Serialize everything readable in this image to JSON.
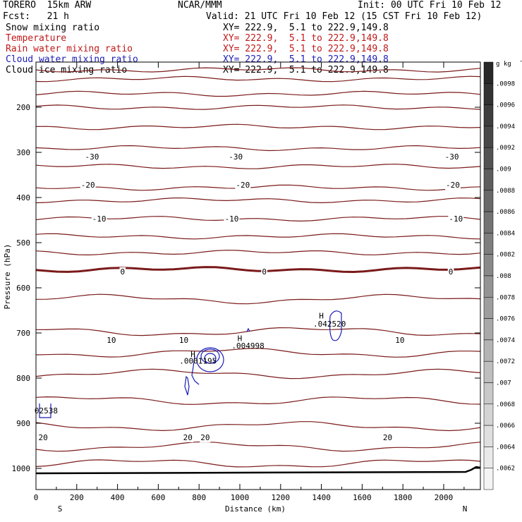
{
  "header": {
    "model": "TORERO  15km ARW",
    "org": "NCAR/MMM",
    "init": "Init: 00 UTC Fri 10 Feb 12",
    "fcst": "Fcst:   21 h",
    "valid": "Valid: 21 UTC Fri 10 Feb 12 (15 CST Fri 10 Feb 12)",
    "fields": [
      {
        "name": "Snow mixing ratio",
        "xy": "XY= 222.9,  5.1 to 222.9,149.8",
        "color": "#000000"
      },
      {
        "name": "Temperature",
        "xy": "XY= 222.9,  5.1 to 222.9,149.8",
        "color": "#c01818"
      },
      {
        "name": "Rain water mixing ratio",
        "xy": "XY= 222.9,  5.1 to 222.9,149.8",
        "color": "#c01818"
      },
      {
        "name": "Cloud water mixing ratio",
        "xy": "XY= 222.9,  5.1 to 222.9,149.8",
        "color": "#1c1cb8"
      },
      {
        "name": "Cloud ice mixing ratio",
        "xy": "XY= 222.9,  5.1 to 222.9,149.8",
        "color": "#000000"
      }
    ]
  },
  "chart_data": {
    "type": "cross-section contour",
    "xlabel": "Distance (km)",
    "ylabel": "Pressure (hPa)",
    "xlim": [
      0,
      2180
    ],
    "ylim": [
      1050,
      100
    ],
    "x_ticks": [
      0,
      200,
      400,
      600,
      800,
      1000,
      1200,
      1400,
      1600,
      1800,
      2000
    ],
    "y_ticks": [
      200,
      300,
      400,
      500,
      600,
      700,
      800,
      900,
      1000
    ],
    "x_end_labels": {
      "left": "S",
      "right": "N"
    },
    "colorbar": {
      "unit": "g kg",
      "unit_exp": "-1",
      "labels": [
        ".0098",
        ".0096",
        ".0094",
        ".0092",
        ".009",
        ".0088",
        ".0086",
        ".0084",
        ".0082",
        ".008",
        ".0078",
        ".0076",
        ".0074",
        ".0072",
        ".007",
        ".0068",
        ".0066",
        ".0064",
        ".0062"
      ]
    },
    "temperature_contours": [
      {
        "value": -30,
        "labels": [
          {
            "x": 275,
            "text": "-30"
          },
          {
            "x": 980,
            "text": "-30"
          },
          {
            "x": 2040,
            "text": "-30"
          }
        ]
      },
      {
        "value": -20,
        "labels": [
          {
            "x": 255,
            "text": "-20"
          },
          {
            "x": 1015,
            "text": "-20"
          },
          {
            "x": 2045,
            "text": "-20"
          }
        ]
      },
      {
        "value": -10,
        "labels": [
          {
            "x": 310,
            "text": "-10"
          },
          {
            "x": 960,
            "text": "-10"
          },
          {
            "x": 2060,
            "text": "-10"
          }
        ]
      },
      {
        "value": 0,
        "labels": [
          {
            "x": 425,
            "text": "0"
          },
          {
            "x": 1120,
            "text": "0"
          },
          {
            "x": 2035,
            "text": "0"
          }
        ]
      },
      {
        "value": 10,
        "labels": [
          {
            "x": 370,
            "text": "10"
          },
          {
            "x": 725,
            "text": "10"
          },
          {
            "x": 1785,
            "text": "10"
          }
        ]
      },
      {
        "value": 20,
        "labels": [
          {
            "x": 35,
            "text": "20"
          },
          {
            "x": 745,
            "text": "20"
          },
          {
            "x": 830,
            "text": "20"
          },
          {
            "x": 1725,
            "text": "20"
          }
        ]
      }
    ],
    "annotations": [
      {
        "x": 770,
        "p": 747,
        "text": "H",
        "color": "#c01818"
      },
      {
        "x": 795,
        "p": 762,
        "text": ".0001195",
        "color": "#c01818"
      },
      {
        "x": 1000,
        "p": 712,
        "text": "H",
        "color": "#1c1cb8"
      },
      {
        "x": 1040,
        "p": 728,
        "text": ".004998",
        "color": "#1c1cb8"
      },
      {
        "x": 1400,
        "p": 662,
        "text": "H",
        "color": "#1c1cb8"
      },
      {
        "x": 1440,
        "p": 680,
        "text": ".042520",
        "color": "#1c1cb8"
      },
      {
        "x": 50,
        "p": 872,
        "text": "02538",
        "color": "#c01818"
      }
    ]
  }
}
